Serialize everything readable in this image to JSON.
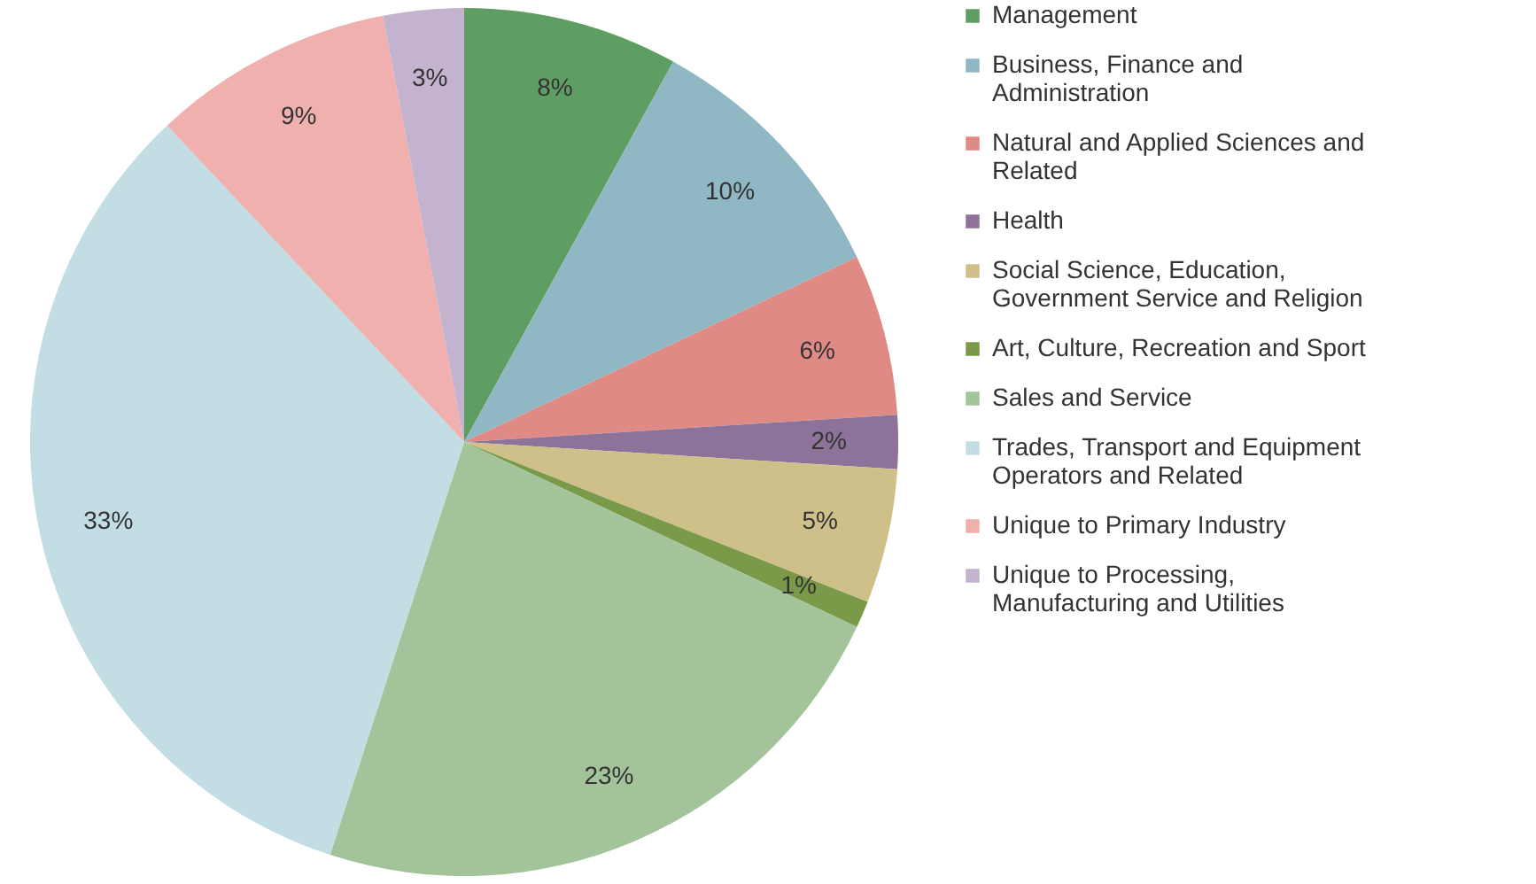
{
  "chart_data": {
    "type": "pie",
    "categories": [
      "Management",
      "Business, Finance and Administration",
      "Natural and Applied Sciences and Related",
      "Health",
      "Social Science, Education, Government Service and Religion",
      "Art, Culture, Recreation and Sport",
      "Sales and Service",
      "Trades, Transport and Equipment Operators and Related",
      "Unique to Primary Industry",
      "Unique to Processing, Manufacturing and Utilities"
    ],
    "values": [
      8,
      10,
      6,
      2,
      5,
      1,
      23,
      33,
      9,
      3
    ],
    "value_labels": [
      "8%",
      "10%",
      "6%",
      "2%",
      "5%",
      "1%",
      "23%",
      "33%",
      "9%",
      "3%"
    ],
    "colors": [
      "#5e9e62",
      "#8fb8c4",
      "#e08a86",
      "#8d7399",
      "#cfc089",
      "#7a9a4a",
      "#a3c49a",
      "#c2dde3",
      "#f0b0ae",
      "#c3b3cf"
    ],
    "legend": "right"
  }
}
